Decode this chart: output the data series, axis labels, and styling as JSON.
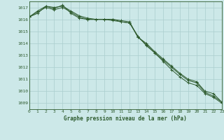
{
  "background_color": "#cce8e8",
  "grid_color": "#aacece",
  "line_color": "#2d5a2d",
  "title": "Graphe pression niveau de la mer (hPa)",
  "xlim": [
    0,
    23
  ],
  "ylim": [
    1008.5,
    1017.5
  ],
  "yticks": [
    1009,
    1010,
    1011,
    1012,
    1013,
    1014,
    1015,
    1016,
    1017
  ],
  "xticks": [
    0,
    1,
    2,
    3,
    4,
    5,
    6,
    7,
    8,
    9,
    10,
    11,
    12,
    13,
    14,
    15,
    16,
    17,
    18,
    19,
    20,
    21,
    22,
    23
  ],
  "series1": [
    1016.2,
    1016.7,
    1017.1,
    1017.0,
    1017.1,
    1016.7,
    1016.3,
    1016.1,
    1016.0,
    1016.0,
    1016.0,
    1015.9,
    1015.8,
    1014.5,
    1014.0,
    1013.3,
    1012.7,
    1012.1,
    1011.5,
    1011.0,
    1010.8,
    1010.0,
    1009.8,
    1009.1
  ],
  "series2": [
    1016.2,
    1016.5,
    1017.1,
    1016.9,
    1017.2,
    1016.5,
    1016.1,
    1016.0,
    1016.0,
    1016.0,
    1015.9,
    1015.8,
    1015.7,
    1014.6,
    1013.8,
    1013.2,
    1012.5,
    1011.8,
    1011.2,
    1010.7,
    1010.5,
    1009.8,
    1009.5,
    1009.0
  ],
  "series3": [
    1016.2,
    1016.6,
    1017.0,
    1016.8,
    1017.0,
    1016.6,
    1016.2,
    1016.0,
    1016.0,
    1016.0,
    1016.0,
    1015.8,
    1015.7,
    1014.5,
    1013.9,
    1013.2,
    1012.6,
    1012.0,
    1011.4,
    1010.9,
    1010.7,
    1009.9,
    1009.6,
    1009.1
  ]
}
